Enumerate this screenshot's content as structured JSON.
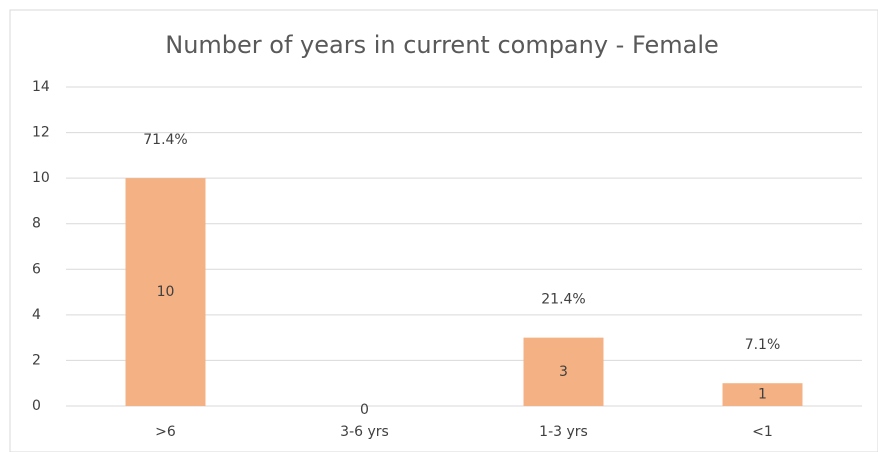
{
  "chart_data": {
    "type": "bar",
    "title": "Number of years in current company - Female",
    "categories": [
      ">6",
      "3-6 yrs",
      "1-3 yrs",
      "<1"
    ],
    "values": [
      10,
      0,
      3,
      1
    ],
    "percent_labels": [
      "71.4%",
      null,
      "21.4%",
      "7.1%"
    ],
    "color": "#f4b183",
    "ylim": [
      0,
      14
    ],
    "yticks": [
      0,
      2,
      4,
      6,
      8,
      10,
      12,
      14
    ],
    "grid": true
  }
}
